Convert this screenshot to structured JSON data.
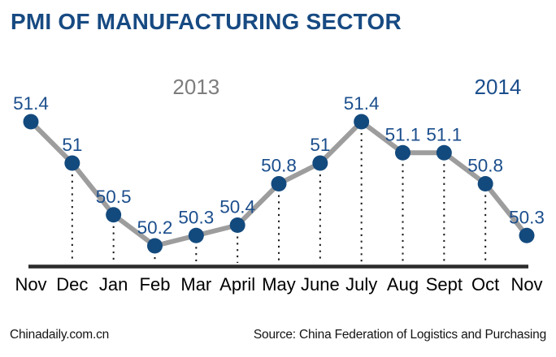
{
  "header": {
    "title": "PMI OF MANUFACTURING SECTOR"
  },
  "chart_data": {
    "type": "line",
    "title": "PMI OF MANUFACTURING SECTOR",
    "categories": [
      "Nov",
      "Dec",
      "Jan",
      "Feb",
      "Mar",
      "April",
      "May",
      "June",
      "July",
      "Aug",
      "Sept",
      "Oct",
      "Nov"
    ],
    "values": [
      51.4,
      51,
      50.5,
      50.2,
      50.3,
      50.4,
      50.8,
      51,
      51.4,
      51.1,
      51.1,
      50.8,
      50.3
    ],
    "point_labels": [
      "51.4",
      "51",
      "50.5",
      "50.2",
      "50.3",
      "50.4",
      "50.8",
      "51",
      "51.4",
      "51.1",
      "51.1",
      "50.8",
      "50.3"
    ],
    "ylim": [
      50.0,
      51.6
    ],
    "xlabel": "",
    "ylabel": "",
    "grid": false,
    "legend": "none",
    "guide_lines": "dotted vertical line from each point down to x-axis, except first and last points",
    "year_annotations": [
      {
        "label": "2013",
        "x_index": 4.0,
        "color_key": "year_gray"
      },
      {
        "label": "2014",
        "x_index": 11.3,
        "color_key": "label_blue"
      }
    ]
  },
  "footer": {
    "brand": "Chinadaily.com.cn",
    "source": "Source: China Federation of Logistics and Purchasing"
  },
  "colors": {
    "background": "#ffffff",
    "title_blue": "#174a82",
    "label_blue": "#1b4e8c",
    "point_blue": "#134a7e",
    "line_gray": "#9d9d9d",
    "year_gray": "#7d7d7d",
    "axis_dark": "#2d2d2d",
    "guide_black": "#1a1a1a",
    "month_black": "#000000",
    "footer_black": "#141414"
  }
}
